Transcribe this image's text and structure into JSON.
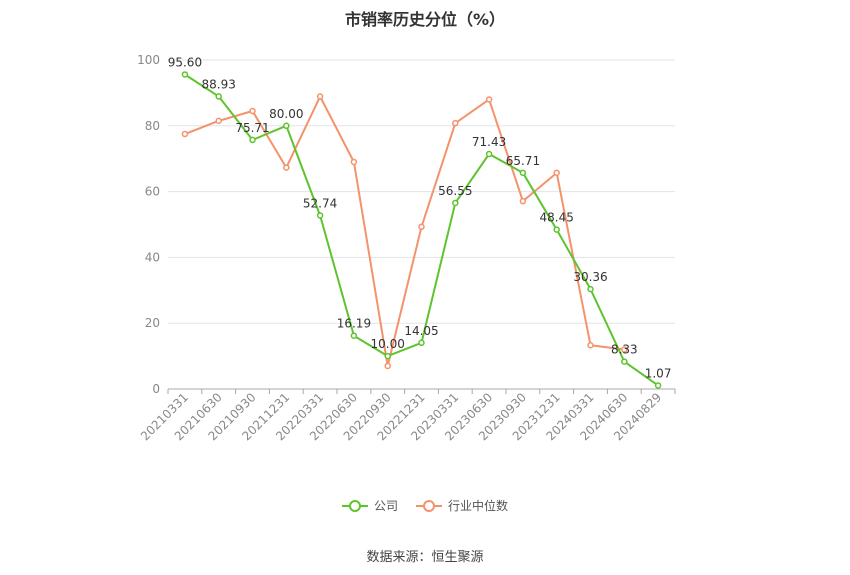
{
  "chart_data": {
    "type": "line",
    "title": "市销率历史分位（%）",
    "categories": [
      "20210331",
      "20210630",
      "20210930",
      "20211231",
      "20220331",
      "20220630",
      "20220930",
      "20221231",
      "20230331",
      "20230630",
      "20230930",
      "20231231",
      "20240331",
      "20240630",
      "20240829"
    ],
    "ylim": [
      0,
      100
    ],
    "yticks": [
      0,
      20,
      40,
      60,
      80,
      100
    ],
    "grid": true,
    "legend_position": "bottom",
    "series": [
      {
        "name": "公司",
        "color": "#5ec42d",
        "values": [
          95.6,
          88.93,
          75.71,
          80.0,
          52.74,
          16.19,
          10.0,
          14.05,
          56.55,
          71.43,
          65.71,
          48.45,
          30.36,
          8.33,
          1.07
        ],
        "labels": [
          "95.60",
          "88.93",
          "75.71",
          "80.00",
          "52.74",
          "16.19",
          "10.00",
          "14.05",
          "56.55",
          "71.43",
          "65.71",
          "48.45",
          "30.36",
          "8.33",
          "1.07"
        ]
      },
      {
        "name": "行业中位数",
        "color": "#f4926b",
        "values": [
          77.5,
          81.5,
          84.5,
          67.3,
          88.9,
          69.0,
          7.0,
          49.3,
          80.8,
          88.0,
          57.1,
          65.7,
          13.3,
          12.0,
          null
        ]
      }
    ]
  },
  "source_text": "数据来源：恒生聚源"
}
